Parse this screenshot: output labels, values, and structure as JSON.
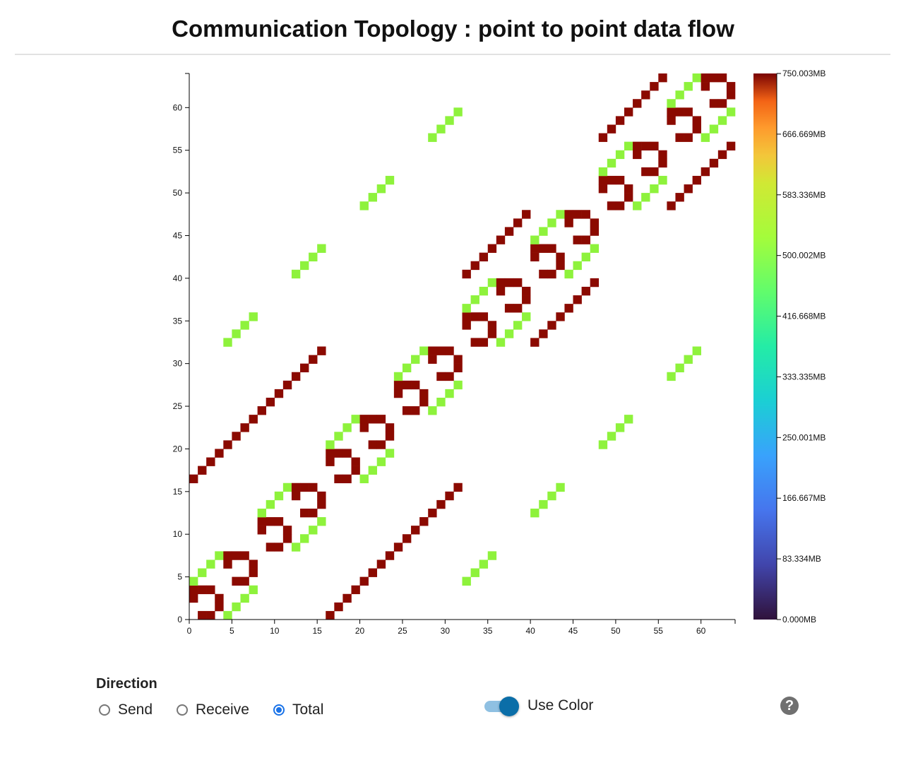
{
  "title": "Communication Topology : point to point data flow",
  "direction": {
    "label": "Direction",
    "options": [
      "Send",
      "Receive",
      "Total"
    ],
    "selected": "Total"
  },
  "use_color": {
    "label": "Use Color",
    "on": true
  },
  "help_icon": "?",
  "colors": {
    "high": "#8b0a00",
    "mid": "#8ef23c",
    "accent": "#0b6ea8"
  },
  "chart_data": {
    "type": "heatmap",
    "title": "",
    "xlabel": "",
    "ylabel": "",
    "xlim": [
      0,
      64
    ],
    "ylim": [
      0,
      64
    ],
    "x_ticks": [
      0,
      5,
      10,
      15,
      20,
      25,
      30,
      35,
      40,
      45,
      50,
      55,
      60
    ],
    "y_ticks": [
      0,
      5,
      10,
      15,
      20,
      25,
      30,
      35,
      40,
      45,
      50,
      55,
      60
    ],
    "colorbar": {
      "min": "0.000MB",
      "max": "750.003MB",
      "ticks": [
        "750.003MB",
        "666.669MB",
        "583.336MB",
        "500.002MB",
        "416.668MB",
        "333.335MB",
        "250.001MB",
        "166.667MB",
        "83.334MB",
        "0.000MB"
      ],
      "colormap": "turbo"
    },
    "cells": [
      [
        0,
        2,
        750
      ],
      [
        0,
        3,
        750
      ],
      [
        1,
        0,
        750
      ],
      [
        1,
        3,
        750
      ],
      [
        2,
        0,
        750
      ],
      [
        2,
        3,
        750
      ],
      [
        3,
        1,
        750
      ],
      [
        3,
        2,
        750
      ],
      [
        0,
        4,
        375
      ],
      [
        1,
        5,
        375
      ],
      [
        2,
        6,
        375
      ],
      [
        3,
        7,
        375
      ],
      [
        4,
        0,
        375
      ],
      [
        5,
        1,
        375
      ],
      [
        6,
        2,
        375
      ],
      [
        7,
        3,
        375
      ],
      [
        4,
        6,
        750
      ],
      [
        4,
        7,
        750
      ],
      [
        5,
        4,
        750
      ],
      [
        5,
        7,
        750
      ],
      [
        6,
        4,
        750
      ],
      [
        6,
        7,
        750
      ],
      [
        7,
        5,
        750
      ],
      [
        7,
        6,
        750
      ],
      [
        8,
        10,
        750
      ],
      [
        8,
        11,
        750
      ],
      [
        9,
        8,
        750
      ],
      [
        9,
        11,
        750
      ],
      [
        10,
        8,
        750
      ],
      [
        10,
        11,
        750
      ],
      [
        11,
        9,
        750
      ],
      [
        11,
        10,
        750
      ],
      [
        8,
        12,
        375
      ],
      [
        9,
        13,
        375
      ],
      [
        10,
        14,
        375
      ],
      [
        11,
        15,
        375
      ],
      [
        12,
        8,
        375
      ],
      [
        13,
        9,
        375
      ],
      [
        14,
        10,
        375
      ],
      [
        15,
        11,
        375
      ],
      [
        12,
        14,
        750
      ],
      [
        12,
        15,
        750
      ],
      [
        13,
        12,
        750
      ],
      [
        13,
        15,
        750
      ],
      [
        14,
        12,
        750
      ],
      [
        14,
        15,
        750
      ],
      [
        15,
        13,
        750
      ],
      [
        15,
        14,
        750
      ],
      [
        16,
        18,
        750
      ],
      [
        16,
        19,
        750
      ],
      [
        17,
        16,
        750
      ],
      [
        17,
        19,
        750
      ],
      [
        18,
        16,
        750
      ],
      [
        18,
        19,
        750
      ],
      [
        19,
        17,
        750
      ],
      [
        19,
        18,
        750
      ],
      [
        16,
        20,
        375
      ],
      [
        17,
        21,
        375
      ],
      [
        18,
        22,
        375
      ],
      [
        19,
        23,
        375
      ],
      [
        20,
        16,
        375
      ],
      [
        21,
        17,
        375
      ],
      [
        22,
        18,
        375
      ],
      [
        23,
        19,
        375
      ],
      [
        20,
        22,
        750
      ],
      [
        20,
        23,
        750
      ],
      [
        21,
        20,
        750
      ],
      [
        21,
        23,
        750
      ],
      [
        22,
        20,
        750
      ],
      [
        22,
        23,
        750
      ],
      [
        23,
        21,
        750
      ],
      [
        23,
        22,
        750
      ],
      [
        24,
        26,
        750
      ],
      [
        24,
        27,
        750
      ],
      [
        25,
        24,
        750
      ],
      [
        25,
        27,
        750
      ],
      [
        26,
        24,
        750
      ],
      [
        26,
        27,
        750
      ],
      [
        27,
        25,
        750
      ],
      [
        27,
        26,
        750
      ],
      [
        24,
        28,
        375
      ],
      [
        25,
        29,
        375
      ],
      [
        26,
        30,
        375
      ],
      [
        27,
        31,
        375
      ],
      [
        28,
        24,
        375
      ],
      [
        29,
        25,
        375
      ],
      [
        30,
        26,
        375
      ],
      [
        31,
        27,
        375
      ],
      [
        28,
        30,
        750
      ],
      [
        28,
        31,
        750
      ],
      [
        29,
        28,
        750
      ],
      [
        29,
        31,
        750
      ],
      [
        30,
        28,
        750
      ],
      [
        30,
        31,
        750
      ],
      [
        31,
        29,
        750
      ],
      [
        31,
        30,
        750
      ],
      [
        32,
        34,
        750
      ],
      [
        32,
        35,
        750
      ],
      [
        33,
        32,
        750
      ],
      [
        33,
        35,
        750
      ],
      [
        34,
        32,
        750
      ],
      [
        34,
        35,
        750
      ],
      [
        35,
        33,
        750
      ],
      [
        35,
        34,
        750
      ],
      [
        32,
        36,
        375
      ],
      [
        33,
        37,
        375
      ],
      [
        34,
        38,
        375
      ],
      [
        35,
        39,
        375
      ],
      [
        36,
        32,
        375
      ],
      [
        37,
        33,
        375
      ],
      [
        38,
        34,
        375
      ],
      [
        39,
        35,
        375
      ],
      [
        36,
        38,
        750
      ],
      [
        36,
        39,
        750
      ],
      [
        37,
        36,
        750
      ],
      [
        37,
        39,
        750
      ],
      [
        38,
        36,
        750
      ],
      [
        38,
        39,
        750
      ],
      [
        39,
        37,
        750
      ],
      [
        39,
        38,
        750
      ],
      [
        40,
        42,
        750
      ],
      [
        40,
        43,
        750
      ],
      [
        41,
        40,
        750
      ],
      [
        41,
        43,
        750
      ],
      [
        42,
        40,
        750
      ],
      [
        42,
        43,
        750
      ],
      [
        43,
        41,
        750
      ],
      [
        43,
        42,
        750
      ],
      [
        40,
        44,
        375
      ],
      [
        41,
        45,
        375
      ],
      [
        42,
        46,
        375
      ],
      [
        43,
        47,
        375
      ],
      [
        44,
        40,
        375
      ],
      [
        45,
        41,
        375
      ],
      [
        46,
        42,
        375
      ],
      [
        47,
        43,
        375
      ],
      [
        44,
        46,
        750
      ],
      [
        44,
        47,
        750
      ],
      [
        45,
        44,
        750
      ],
      [
        45,
        47,
        750
      ],
      [
        46,
        44,
        750
      ],
      [
        46,
        47,
        750
      ],
      [
        47,
        45,
        750
      ],
      [
        47,
        46,
        750
      ],
      [
        48,
        50,
        750
      ],
      [
        48,
        51,
        750
      ],
      [
        49,
        48,
        750
      ],
      [
        49,
        51,
        750
      ],
      [
        50,
        48,
        750
      ],
      [
        50,
        51,
        750
      ],
      [
        51,
        49,
        750
      ],
      [
        51,
        50,
        750
      ],
      [
        48,
        52,
        375
      ],
      [
        49,
        53,
        375
      ],
      [
        50,
        54,
        375
      ],
      [
        51,
        55,
        375
      ],
      [
        52,
        48,
        375
      ],
      [
        53,
        49,
        375
      ],
      [
        54,
        50,
        375
      ],
      [
        55,
        51,
        375
      ],
      [
        52,
        54,
        750
      ],
      [
        52,
        55,
        750
      ],
      [
        53,
        52,
        750
      ],
      [
        53,
        55,
        750
      ],
      [
        54,
        52,
        750
      ],
      [
        54,
        55,
        750
      ],
      [
        55,
        53,
        750
      ],
      [
        55,
        54,
        750
      ],
      [
        56,
        58,
        750
      ],
      [
        56,
        59,
        750
      ],
      [
        57,
        56,
        750
      ],
      [
        57,
        59,
        750
      ],
      [
        58,
        56,
        750
      ],
      [
        58,
        59,
        750
      ],
      [
        59,
        57,
        750
      ],
      [
        59,
        58,
        750
      ],
      [
        56,
        60,
        375
      ],
      [
        57,
        61,
        375
      ],
      [
        58,
        62,
        375
      ],
      [
        59,
        63,
        375
      ],
      [
        60,
        56,
        375
      ],
      [
        61,
        57,
        375
      ],
      [
        62,
        58,
        375
      ],
      [
        63,
        59,
        375
      ],
      [
        60,
        62,
        750
      ],
      [
        60,
        63,
        750
      ],
      [
        61,
        60,
        750
      ],
      [
        61,
        63,
        750
      ],
      [
        62,
        60,
        750
      ],
      [
        62,
        63,
        750
      ],
      [
        63,
        61,
        750
      ],
      [
        63,
        62,
        750
      ],
      [
        0,
        16,
        750
      ],
      [
        1,
        17,
        750
      ],
      [
        2,
        18,
        750
      ],
      [
        3,
        19,
        750
      ],
      [
        4,
        20,
        750
      ],
      [
        5,
        21,
        750
      ],
      [
        6,
        22,
        750
      ],
      [
        7,
        23,
        750
      ],
      [
        8,
        24,
        750
      ],
      [
        9,
        25,
        750
      ],
      [
        10,
        26,
        750
      ],
      [
        11,
        27,
        750
      ],
      [
        12,
        28,
        750
      ],
      [
        13,
        29,
        750
      ],
      [
        14,
        30,
        750
      ],
      [
        15,
        31,
        750
      ],
      [
        16,
        0,
        750
      ],
      [
        17,
        1,
        750
      ],
      [
        18,
        2,
        750
      ],
      [
        19,
        3,
        750
      ],
      [
        20,
        4,
        750
      ],
      [
        21,
        5,
        750
      ],
      [
        22,
        6,
        750
      ],
      [
        23,
        7,
        750
      ],
      [
        24,
        8,
        750
      ],
      [
        25,
        9,
        750
      ],
      [
        26,
        10,
        750
      ],
      [
        27,
        11,
        750
      ],
      [
        28,
        12,
        750
      ],
      [
        29,
        13,
        750
      ],
      [
        30,
        14,
        750
      ],
      [
        31,
        15,
        750
      ],
      [
        32,
        40,
        750
      ],
      [
        33,
        41,
        750
      ],
      [
        34,
        42,
        750
      ],
      [
        35,
        43,
        750
      ],
      [
        36,
        44,
        750
      ],
      [
        37,
        45,
        750
      ],
      [
        38,
        46,
        750
      ],
      [
        39,
        47,
        750
      ],
      [
        40,
        32,
        750
      ],
      [
        41,
        33,
        750
      ],
      [
        42,
        34,
        750
      ],
      [
        43,
        35,
        750
      ],
      [
        44,
        36,
        750
      ],
      [
        45,
        37,
        750
      ],
      [
        46,
        38,
        750
      ],
      [
        47,
        39,
        750
      ],
      [
        48,
        56,
        750
      ],
      [
        49,
        57,
        750
      ],
      [
        50,
        58,
        750
      ],
      [
        51,
        59,
        750
      ],
      [
        52,
        60,
        750
      ],
      [
        53,
        61,
        750
      ],
      [
        54,
        62,
        750
      ],
      [
        55,
        63,
        750
      ],
      [
        56,
        48,
        750
      ],
      [
        57,
        49,
        750
      ],
      [
        58,
        50,
        750
      ],
      [
        59,
        51,
        750
      ],
      [
        60,
        52,
        750
      ],
      [
        61,
        53,
        750
      ],
      [
        62,
        54,
        750
      ],
      [
        63,
        55,
        750
      ],
      [
        4,
        32,
        375
      ],
      [
        5,
        33,
        375
      ],
      [
        6,
        34,
        375
      ],
      [
        7,
        35,
        375
      ],
      [
        12,
        40,
        375
      ],
      [
        13,
        41,
        375
      ],
      [
        14,
        42,
        375
      ],
      [
        15,
        43,
        375
      ],
      [
        20,
        48,
        375
      ],
      [
        21,
        49,
        375
      ],
      [
        22,
        50,
        375
      ],
      [
        23,
        51,
        375
      ],
      [
        28,
        56,
        375
      ],
      [
        29,
        57,
        375
      ],
      [
        30,
        58,
        375
      ],
      [
        31,
        59,
        375
      ],
      [
        32,
        4,
        375
      ],
      [
        33,
        5,
        375
      ],
      [
        34,
        6,
        375
      ],
      [
        35,
        7,
        375
      ],
      [
        40,
        12,
        375
      ],
      [
        41,
        13,
        375
      ],
      [
        42,
        14,
        375
      ],
      [
        43,
        15,
        375
      ],
      [
        48,
        20,
        375
      ],
      [
        49,
        21,
        375
      ],
      [
        50,
        22,
        375
      ],
      [
        51,
        23,
        375
      ],
      [
        56,
        28,
        375
      ],
      [
        57,
        29,
        375
      ],
      [
        58,
        30,
        375
      ],
      [
        59,
        31,
        375
      ]
    ]
  }
}
